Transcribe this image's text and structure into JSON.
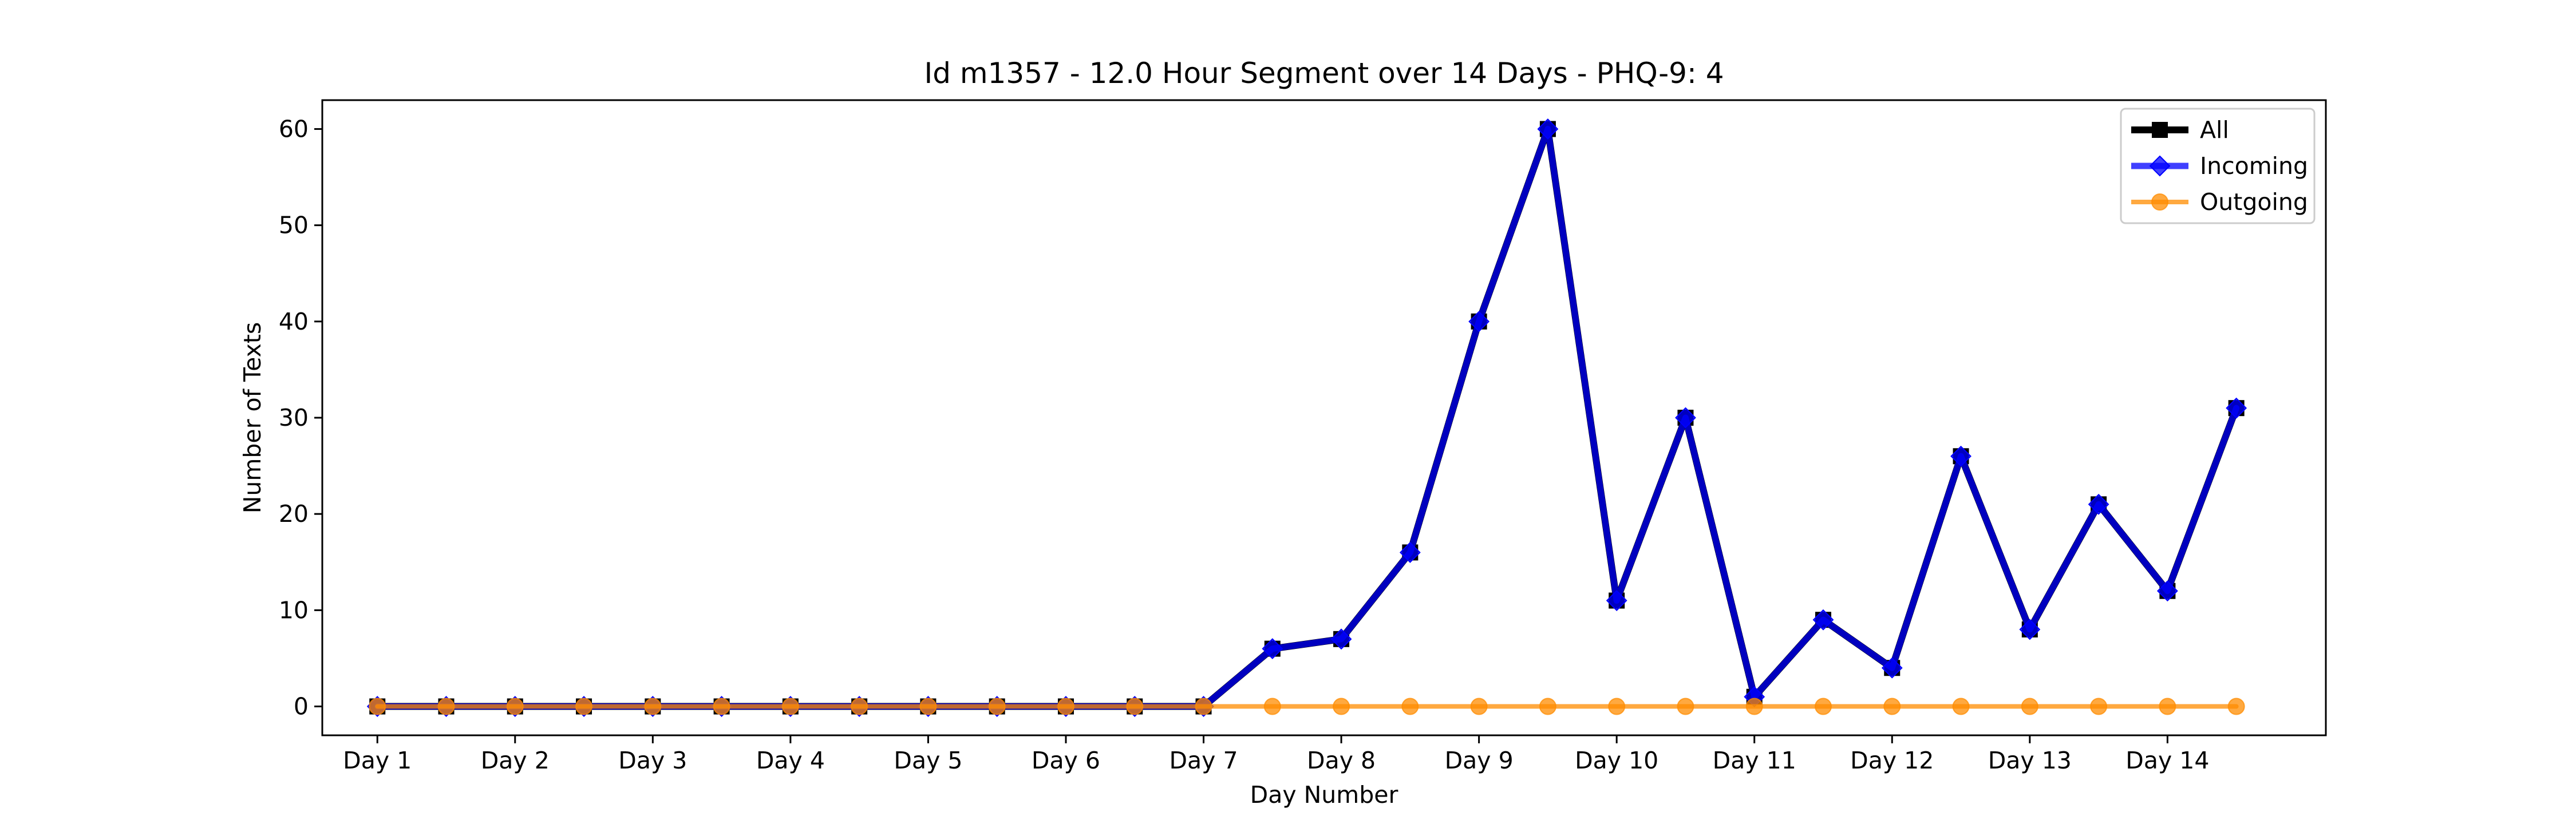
{
  "chart_data": {
    "type": "line",
    "title": "Id m1357 - 12.0 Hour Segment over 14 Days - PHQ-9: 4",
    "xlabel": "Day Number",
    "ylabel": "Number of Texts",
    "x_tick_labels": [
      "Day 1",
      "Day 2",
      "Day 3",
      "Day 4",
      "Day 5",
      "Day 6",
      "Day 7",
      "Day 8",
      "Day 9",
      "Day 10",
      "Day 11",
      "Day 12",
      "Day 13",
      "Day 14"
    ],
    "y_ticks": [
      0,
      10,
      20,
      30,
      40,
      50,
      60
    ],
    "ylim": [
      -3,
      63
    ],
    "xlim": [
      -0.8,
      28.3
    ],
    "grid": false,
    "legend_position": "top-right",
    "x_segments": [
      0,
      1,
      2,
      3,
      4,
      5,
      6,
      7,
      8,
      9,
      10,
      11,
      12,
      13,
      14,
      15,
      16,
      17,
      18,
      19,
      20,
      21,
      22,
      23,
      24,
      25,
      26,
      27
    ],
    "series": [
      {
        "name": "All",
        "color": "#000000",
        "marker": "square",
        "values": [
          0,
          0,
          0,
          0,
          0,
          0,
          0,
          0,
          0,
          0,
          0,
          0,
          0,
          6,
          7,
          16,
          40,
          60,
          11,
          30,
          1,
          9,
          4,
          26,
          8,
          21,
          12,
          31
        ]
      },
      {
        "name": "Incoming",
        "color": "#0000ff",
        "marker": "diamond",
        "values": [
          0,
          0,
          0,
          0,
          0,
          0,
          0,
          0,
          0,
          0,
          0,
          0,
          0,
          6,
          7,
          16,
          40,
          60,
          11,
          30,
          1,
          9,
          4,
          26,
          8,
          21,
          12,
          31
        ]
      },
      {
        "name": "Outgoing",
        "color": "#ff8c00",
        "marker": "circle",
        "values": [
          0,
          0,
          0,
          0,
          0,
          0,
          0,
          0,
          0,
          0,
          0,
          0,
          0,
          0,
          0,
          0,
          0,
          0,
          0,
          0,
          0,
          0,
          0,
          0,
          0,
          0,
          0,
          0
        ]
      }
    ]
  }
}
